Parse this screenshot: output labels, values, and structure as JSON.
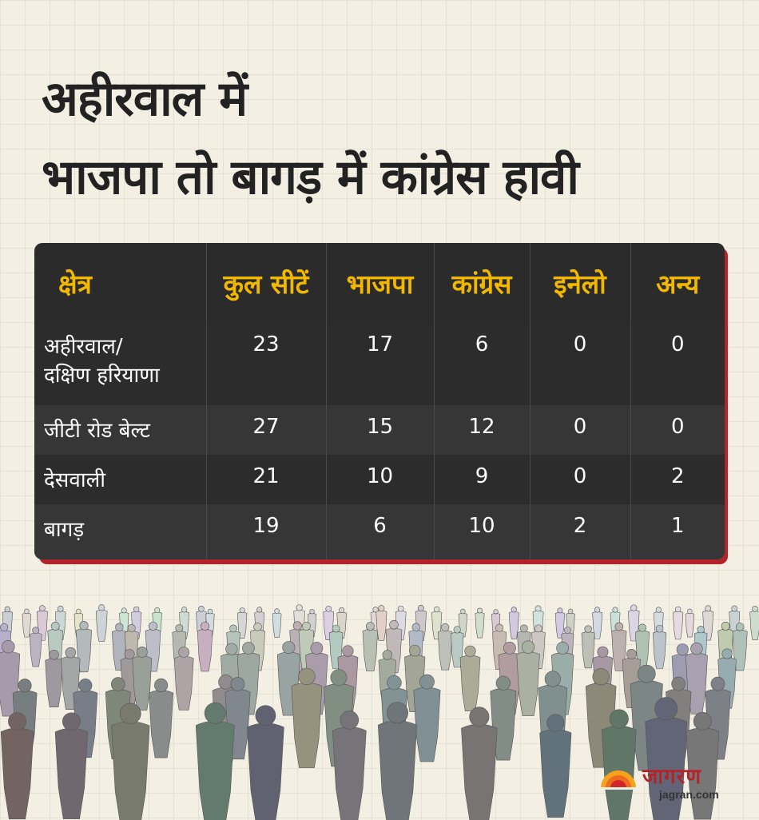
{
  "title": {
    "line1": "अहीरवाल में",
    "line2": "भाजपा तो बागड़ में कांग्रेस हावी"
  },
  "table": {
    "headers": [
      "क्षेत्र",
      "कुल सीटें",
      "भाजपा",
      "कांग्रेस",
      "इनेलो",
      "अन्य"
    ],
    "rows": [
      {
        "region_line1": "अहीरवाल/",
        "region_line2": "दक्षिण हरियाणा",
        "total": "23",
        "bjp": "17",
        "congress": "6",
        "inld": "0",
        "others": "0"
      },
      {
        "region": "जीटी रोड बेल्ट",
        "total": "27",
        "bjp": "15",
        "congress": "12",
        "inld": "0",
        "others": "0"
      },
      {
        "region": "देसवाली",
        "total": "21",
        "bjp": "10",
        "congress": "9",
        "inld": "0",
        "others": "2"
      },
      {
        "region": "बागड़",
        "total": "19",
        "bjp": "6",
        "congress": "10",
        "inld": "2",
        "others": "1"
      }
    ]
  },
  "logo": {
    "name": "जागरण",
    "url": "jagran.com"
  },
  "colors": {
    "background": "#f3efe3",
    "header_text": "#f2b800",
    "table_bg": "#2b2b2b",
    "accent": "#b3232a"
  }
}
